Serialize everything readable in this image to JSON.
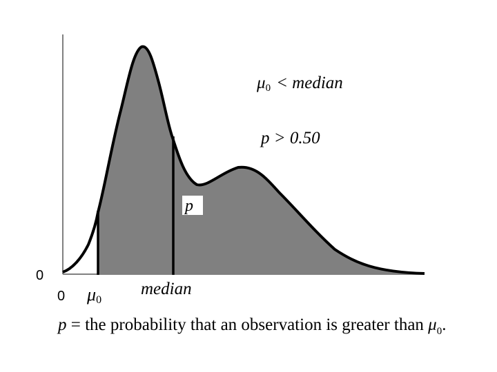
{
  "diagram": {
    "y_axis_zero": "0",
    "x_axis_zero": "0",
    "mu0_symbol": "μ",
    "mu0_subscript": "0",
    "median_label": "median",
    "p_label": "p",
    "annotation_1": {
      "mu_symbol": "μ",
      "subscript": "0",
      "rest": "< median"
    },
    "annotation_2": "p > 0.50",
    "colors": {
      "fill": "#808080",
      "stroke": "#000000",
      "axis": "#808080"
    }
  },
  "caption": {
    "p": "p",
    "text_1": " = the probability that an observation is greater than ",
    "mu_symbol": "μ",
    "subscript": "0",
    "end": "."
  }
}
